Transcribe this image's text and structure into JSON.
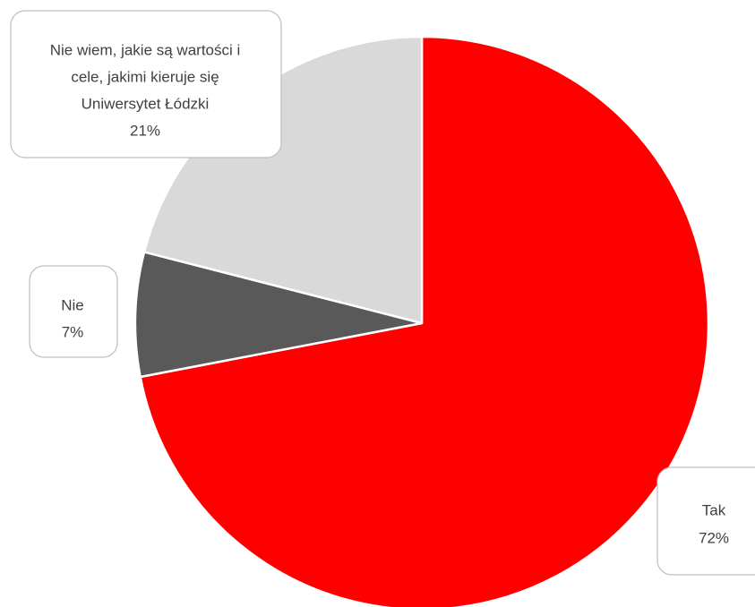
{
  "chart_data": {
    "type": "pie",
    "title": "",
    "slices": [
      {
        "label": "Tak",
        "value": 72,
        "percent_label": "72%",
        "color": "#ff0000"
      },
      {
        "label": "Nie",
        "value": 7,
        "percent_label": "7%",
        "color": "#595959"
      },
      {
        "label": "Nie wiem, jakie są wartości i cele, jakimi kieruje się Uniwersytet Łódzki",
        "value": 21,
        "percent_label": "21%",
        "color": "#d9d9d9"
      }
    ],
    "label_lines": [
      [
        "Tak",
        "72%"
      ],
      [
        "Nie",
        "7%"
      ],
      [
        "Nie wiem, jakie są wartości i",
        "cele, jakimi kieruje się",
        "Uniwersytet Łódzki",
        "21%"
      ]
    ],
    "legend": "none",
    "data_labels": "callouts"
  }
}
